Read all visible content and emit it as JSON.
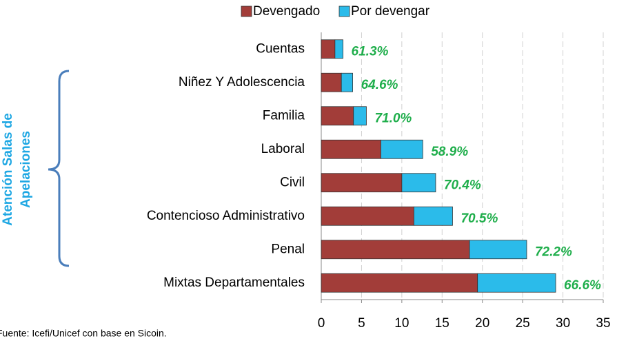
{
  "chart_data": {
    "type": "stacked_barh",
    "categories": [
      "Cuentas",
      "Niñez Y Adolescencia",
      "Familia",
      "Laboral",
      "Civil",
      "Contencioso Administrativo",
      "Penal",
      "Mixtas Departamentales"
    ],
    "series": [
      {
        "name": "Devengado",
        "color": "#a23d39",
        "values": [
          1.7,
          2.5,
          4.0,
          7.4,
          10.0,
          11.5,
          18.4,
          19.4
        ]
      },
      {
        "name": "Por devengar",
        "color": "#2bbbea",
        "values": [
          1.0,
          1.4,
          1.6,
          5.2,
          4.2,
          4.8,
          7.1,
          9.7
        ]
      }
    ],
    "percent_labels": [
      "61.3%",
      "64.6%",
      "71.0%",
      "58.9%",
      "70.4%",
      "70.5%",
      "72.2%",
      "66.6%"
    ],
    "xlim": [
      0,
      35
    ],
    "xticks": [
      0,
      5,
      10,
      15,
      20,
      25,
      30,
      35
    ],
    "grid": true,
    "group_label": [
      "Atención  Salas  de",
      "Apelaciones"
    ],
    "source": "Fuente: Icefi/Unicef con base en Sicoin."
  }
}
